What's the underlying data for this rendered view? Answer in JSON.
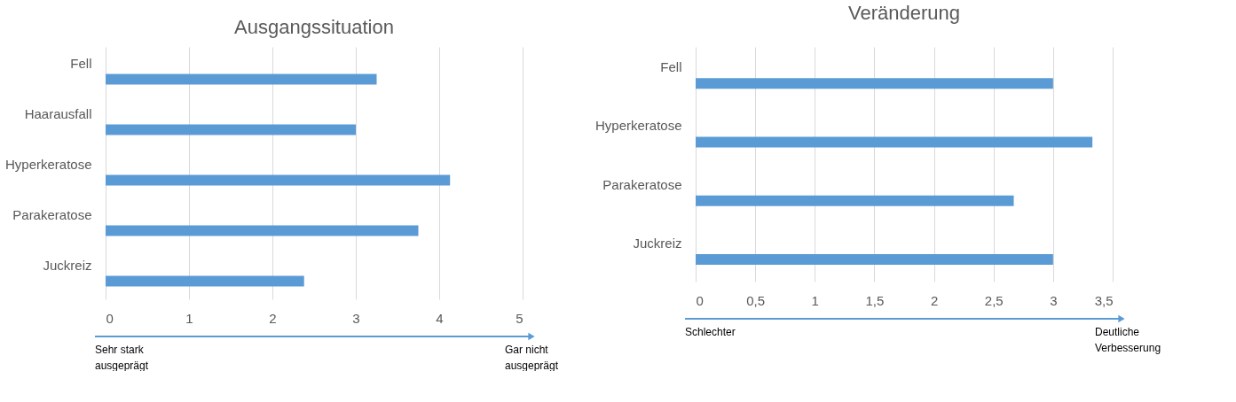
{
  "chart_data": [
    {
      "type": "bar",
      "orientation": "horizontal",
      "title": "Ausgangssituation",
      "categories": [
        "Fell",
        "Haarausfall",
        "Hyperkeratose",
        "Parakeratose",
        "Juckreiz"
      ],
      "values": [
        3.25,
        3.0,
        4.13,
        3.75,
        2.38
      ],
      "color": "#5b9bd5",
      "xlim": [
        0,
        5
      ],
      "xticks": [
        0,
        1,
        2,
        3,
        4,
        5
      ],
      "grid": "x",
      "annotations": [
        "Sehr stark\nausgeprägt",
        "Gar nicht\nausgeprägt"
      ]
    },
    {
      "type": "bar",
      "orientation": "horizontal",
      "title": "Veränderung",
      "categories": [
        "Fell",
        "Hyperkeratose",
        "Parakeratose",
        "Juckreiz"
      ],
      "values": [
        3.0,
        3.33,
        2.67,
        3.0
      ],
      "color": "#5b9bd5",
      "xlim": [
        0,
        3.5
      ],
      "xticks": [
        0,
        {
          "value": 0.5,
          "label": "0,5"
        },
        1,
        {
          "value": 1.5,
          "label": "1,5"
        },
        2,
        {
          "value": 2.5,
          "label": "2,5"
        },
        3,
        {
          "value": 3.5,
          "label": "3,5"
        }
      ],
      "grid": "x",
      "annotations": [
        "Schlechter",
        "Deutliche\nVerbesserung"
      ]
    }
  ]
}
